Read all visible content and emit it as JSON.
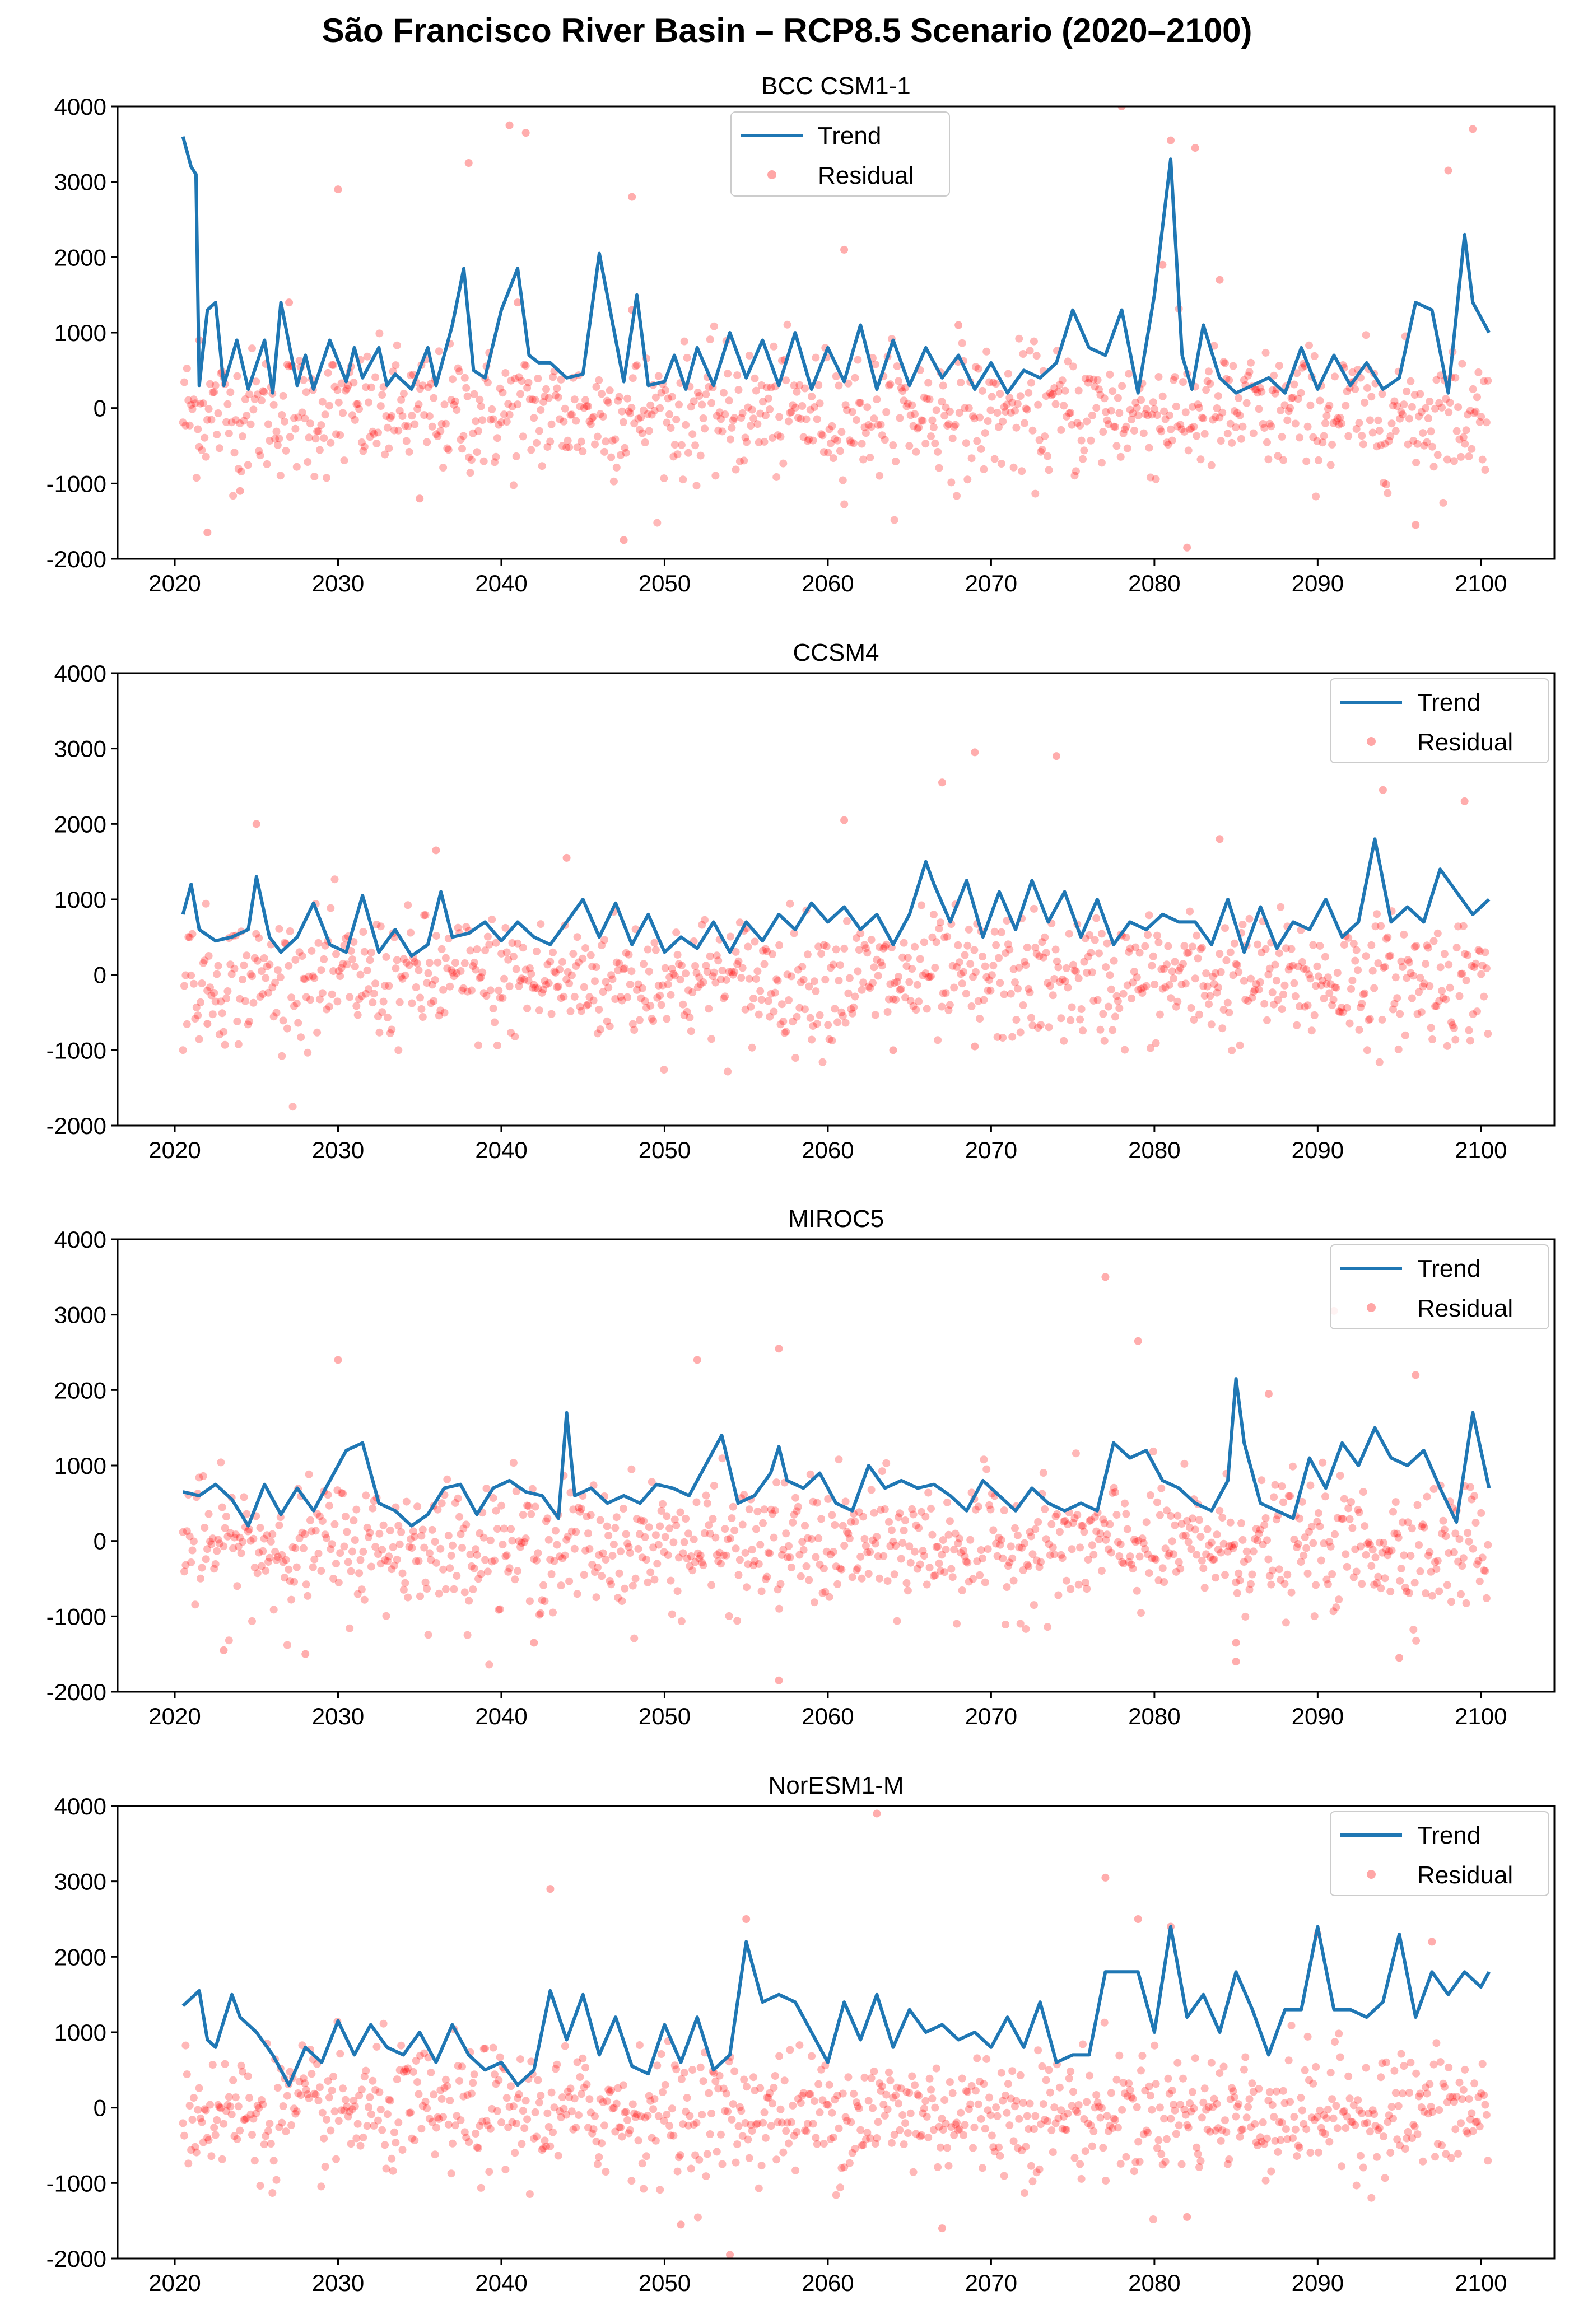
{
  "suptitle": "São Francisco River Basin – RCP8.5 Scenario (2020–2100)",
  "colors": {
    "trend": "#1f77b4",
    "residual": "#ff0000",
    "axis": "#000000",
    "background": "#ffffff"
  },
  "chart_data": [
    {
      "type": "line+scatter",
      "title": "BCC CSM1-1",
      "xlim": [
        2016.5,
        2104.5
      ],
      "ylim": [
        -2000,
        4000
      ],
      "xticks": [
        2020,
        2030,
        2040,
        2050,
        2060,
        2070,
        2080,
        2090,
        2100
      ],
      "yticks": [
        -2000,
        -1000,
        0,
        1000,
        2000,
        3000,
        4000
      ],
      "legend": {
        "position": "top-center",
        "entries": [
          "Trend",
          "Residual"
        ]
      },
      "trend": {
        "name": "Trend",
        "x": [
          2020.5,
          2021,
          2021.3,
          2021.5,
          2022,
          2022.5,
          2023,
          2023.8,
          2024.5,
          2025.5,
          2026,
          2026.5,
          2027.5,
          2028,
          2028.5,
          2029.5,
          2030.5,
          2031,
          2031.5,
          2032.5,
          2033,
          2033.5,
          2034.5,
          2035.5,
          2036,
          2037,
          2037.7,
          2038.3,
          2039,
          2040,
          2041,
          2041.7,
          2042.3,
          2043,
          2044,
          2045,
          2046,
          2047.5,
          2048.3,
          2049,
          2050,
          2050.6,
          2051.3,
          2052,
          2053,
          2054,
          2055,
          2056,
          2057,
          2058,
          2059,
          2060,
          2061,
          2062,
          2063,
          2064,
          2065,
          2066,
          2067,
          2068,
          2069,
          2070,
          2071,
          2072,
          2073,
          2074,
          2075,
          2076,
          2077,
          2078,
          2079,
          2080,
          2081,
          2081.7,
          2082.3,
          2083,
          2084,
          2085,
          2086,
          2087,
          2088,
          2089,
          2090,
          2091,
          2092,
          2093,
          2094,
          2095,
          2096,
          2097,
          2098,
          2099,
          2099.5,
          2100.5
        ],
        "values": [
          3600,
          3200,
          3100,
          300,
          1300,
          1400,
          300,
          900,
          250,
          900,
          200,
          1400,
          300,
          700,
          250,
          900,
          350,
          800,
          400,
          800,
          300,
          450,
          250,
          800,
          300,
          1100,
          1850,
          500,
          400,
          1300,
          1850,
          700,
          600,
          600,
          400,
          450,
          2050,
          350,
          1500,
          300,
          350,
          700,
          250,
          800,
          300,
          1000,
          400,
          900,
          300,
          1000,
          250,
          800,
          350,
          1100,
          250,
          900,
          300,
          800,
          400,
          700,
          250,
          600,
          200,
          500,
          400,
          600,
          1300,
          800,
          700,
          1300,
          200,
          1500,
          3300,
          700,
          250,
          1100,
          400,
          200,
          300,
          400,
          200,
          800,
          250,
          700,
          300,
          600,
          250,
          400,
          1400,
          1300,
          200,
          2300,
          1400,
          1000
        ]
      },
      "residual": {
        "name": "Residual",
        "x": [
          2027,
          2030,
          2038,
          2040.5,
          2041.5,
          2048,
          2061,
          2078,
          2081,
          2082.5,
          2098,
          2099.5,
          2022,
          2024,
          2035,
          2047.5,
          2082,
          2096,
          2021.5,
          2041,
          2048,
          2068,
          2080.5,
          2084
        ],
        "values": [
          1400,
          2900,
          3250,
          3750,
          3650,
          2800,
          2100,
          4000,
          3550,
          3450,
          3150,
          3700,
          -1650,
          -1100,
          -1200,
          -1750,
          -1850,
          -1550,
          900,
          1400,
          1300,
          1100,
          1900,
          1700
        ]
      }
    },
    {
      "type": "line+scatter",
      "title": "CCSM4",
      "xlim": [
        2016.5,
        2104.5
      ],
      "ylim": [
        -2000,
        4000
      ],
      "xticks": [
        2020,
        2030,
        2040,
        2050,
        2060,
        2070,
        2080,
        2090,
        2100
      ],
      "yticks": [
        -2000,
        -1000,
        0,
        1000,
        2000,
        3000,
        4000
      ],
      "legend": {
        "position": "top-right",
        "entries": [
          "Trend",
          "Residual"
        ]
      },
      "trend": {
        "name": "Trend",
        "x": [
          2020.5,
          2021,
          2021.5,
          2022.5,
          2023.5,
          2024.5,
          2025,
          2025.8,
          2026.5,
          2027.5,
          2028.5,
          2029.5,
          2030.5,
          2031.5,
          2032.5,
          2033.5,
          2034.5,
          2035.5,
          2036.3,
          2037,
          2038,
          2039,
          2040,
          2041,
          2042,
          2043,
          2044,
          2045,
          2046,
          2047,
          2048,
          2049,
          2050,
          2051,
          2052,
          2053,
          2054,
          2055,
          2056,
          2057,
          2058,
          2059,
          2060,
          2061,
          2062,
          2063,
          2064,
          2065,
          2066,
          2066.5,
          2067.5,
          2068.5,
          2069.5,
          2070.5,
          2071.5,
          2072.5,
          2073.5,
          2074.5,
          2075.5,
          2076.5,
          2077.5,
          2078.5,
          2079.5,
          2080.5,
          2081.5,
          2082.5,
          2083.5,
          2084.5,
          2085.5,
          2086.5,
          2087.5,
          2088.5,
          2089.5,
          2090.5,
          2091.5,
          2092.5,
          2093.5,
          2094.5,
          2095.5,
          2096.5,
          2097.5,
          2098.5,
          2099.5,
          2100.5
        ],
        "values": [
          800,
          1200,
          600,
          450,
          500,
          600,
          1300,
          500,
          300,
          500,
          950,
          400,
          300,
          1050,
          300,
          600,
          250,
          400,
          1100,
          500,
          550,
          700,
          450,
          700,
          500,
          400,
          700,
          1000,
          500,
          950,
          400,
          800,
          300,
          500,
          350,
          700,
          300,
          700,
          450,
          800,
          600,
          950,
          700,
          900,
          600,
          800,
          400,
          800,
          1500,
          1200,
          700,
          1250,
          500,
          1100,
          600,
          1250,
          700,
          1100,
          500,
          1000,
          400,
          700,
          600,
          800,
          700,
          700,
          400,
          1000,
          300,
          900,
          350,
          700,
          600,
          1000,
          500,
          700,
          1800,
          700,
          900,
          700,
          1400,
          1100,
          800,
          1000
        ]
      },
      "residual": {
        "name": "Residual",
        "x": [
          2025,
          2036,
          2044,
          2061,
          2067,
          2069,
          2074,
          2084,
          2094,
          2099,
          2022,
          2064,
          2069
        ],
        "values": [
          2000,
          1650,
          1550,
          2050,
          2550,
          2950,
          2900,
          1800,
          2450,
          2300,
          -650,
          -1000,
          -950
        ]
      }
    },
    {
      "type": "line+scatter",
      "title": "MIROC5",
      "xlim": [
        2016.5,
        2104.5
      ],
      "ylim": [
        -2000,
        4000
      ],
      "xticks": [
        2020,
        2030,
        2040,
        2050,
        2060,
        2070,
        2080,
        2090,
        2100
      ],
      "yticks": [
        -2000,
        -1000,
        0,
        1000,
        2000,
        3000,
        4000
      ],
      "legend": {
        "position": "top-right",
        "entries": [
          "Trend",
          "Residual"
        ]
      },
      "trend": {
        "name": "Trend",
        "x": [
          2020.5,
          2021.5,
          2022.5,
          2023.5,
          2024.5,
          2025.5,
          2026.5,
          2027.5,
          2028.5,
          2029.5,
          2030.5,
          2031.5,
          2032.5,
          2033.5,
          2034.5,
          2035.5,
          2036.5,
          2037.5,
          2038.5,
          2039.5,
          2040.5,
          2041.5,
          2042.5,
          2043.5,
          2044,
          2044.5,
          2045.5,
          2046.5,
          2047.5,
          2048.5,
          2049.5,
          2050.5,
          2051.5,
          2052.5,
          2053.5,
          2054.5,
          2055.5,
          2056.5,
          2057,
          2057.5,
          2058.5,
          2059.5,
          2060.5,
          2061.5,
          2062.5,
          2063.5,
          2064.5,
          2065.5,
          2066.5,
          2067.5,
          2068.5,
          2069.5,
          2070.5,
          2071.5,
          2072.5,
          2073.5,
          2074.5,
          2075.5,
          2076.5,
          2077.5,
          2078.5,
          2079.5,
          2080.5,
          2081.5,
          2082.5,
          2083.5,
          2084.5,
          2085,
          2085.5,
          2086.5,
          2087.5,
          2088.5,
          2089.5,
          2090.5,
          2091.5,
          2092.5,
          2093.5,
          2094.5,
          2095.5,
          2096.5,
          2097.5,
          2098.5,
          2099.5,
          2100.5
        ],
        "values": [
          650,
          600,
          750,
          550,
          200,
          750,
          350,
          700,
          400,
          800,
          1200,
          1300,
          500,
          400,
          200,
          350,
          700,
          750,
          350,
          700,
          800,
          650,
          600,
          300,
          1700,
          600,
          700,
          500,
          600,
          500,
          750,
          700,
          600,
          1000,
          1400,
          500,
          600,
          900,
          1250,
          800,
          700,
          900,
          500,
          400,
          1000,
          700,
          800,
          700,
          750,
          600,
          400,
          800,
          600,
          400,
          700,
          500,
          400,
          500,
          400,
          1300,
          1100,
          1200,
          800,
          700,
          500,
          400,
          800,
          2150,
          1300,
          500,
          400,
          300,
          1100,
          700,
          1300,
          1000,
          1500,
          1100,
          1000,
          1200,
          700,
          250,
          1700,
          700
        ]
      },
      "residual": {
        "name": "Residual",
        "x": [
          2030,
          2052,
          2057,
          2077,
          2079,
          2091,
          2096,
          2087,
          2023,
          2028,
          2042,
          2057,
          2085,
          2095,
          2085
        ],
        "values": [
          2400,
          2400,
          2550,
          3500,
          2650,
          3050,
          2200,
          1950,
          -1450,
          -1500,
          -1350,
          -1850,
          -1600,
          -1550,
          -1350
        ]
      }
    },
    {
      "type": "line+scatter",
      "title": "NorESM1-M",
      "xlim": [
        2016.5,
        2104.5
      ],
      "ylim": [
        -2000,
        4000
      ],
      "xticks": [
        2020,
        2030,
        2040,
        2050,
        2060,
        2070,
        2080,
        2090,
        2100
      ],
      "yticks": [
        -2000,
        -1000,
        0,
        1000,
        2000,
        3000,
        4000
      ],
      "legend": {
        "position": "top-right",
        "entries": [
          "Trend",
          "Residual"
        ]
      },
      "trend": {
        "name": "Trend",
        "x": [
          2020.5,
          2021.5,
          2022,
          2022.5,
          2023.5,
          2024,
          2025,
          2026,
          2027,
          2028,
          2029,
          2030,
          2031,
          2032,
          2033,
          2034,
          2035,
          2036,
          2037,
          2038,
          2039,
          2040,
          2041,
          2042,
          2043,
          2044,
          2045,
          2046,
          2047,
          2048,
          2049,
          2050,
          2051,
          2052,
          2053,
          2054,
          2055,
          2056,
          2057,
          2058,
          2059,
          2060,
          2061,
          2062,
          2063,
          2064,
          2065,
          2066,
          2067,
          2068,
          2069,
          2070,
          2071,
          2072,
          2073,
          2074,
          2075,
          2076,
          2077,
          2078,
          2079,
          2080,
          2081,
          2082,
          2083,
          2084,
          2085,
          2086,
          2087,
          2088,
          2089,
          2090,
          2091,
          2092,
          2093,
          2094,
          2095,
          2096,
          2097,
          2098,
          2099,
          2100,
          2100.5
        ],
        "values": [
          1350,
          1550,
          900,
          800,
          1500,
          1200,
          1000,
          700,
          300,
          800,
          600,
          1150,
          700,
          1100,
          800,
          700,
          1000,
          600,
          1100,
          700,
          500,
          600,
          300,
          500,
          1550,
          900,
          1500,
          700,
          1200,
          550,
          450,
          1100,
          600,
          1200,
          500,
          700,
          2200,
          1400,
          1500,
          1400,
          1000,
          600,
          1400,
          900,
          1500,
          800,
          1300,
          1000,
          1100,
          900,
          1000,
          800,
          1200,
          800,
          1400,
          600,
          700,
          700,
          1800,
          1800,
          1800,
          1000,
          2400,
          1200,
          1500,
          1000,
          1800,
          1300,
          700,
          1300,
          1300,
          2400,
          1300,
          1300,
          1200,
          1400,
          2300,
          1200,
          1800,
          1500,
          1800,
          1600,
          1800
        ]
      },
      "residual": {
        "name": "Residual",
        "x": [
          2043,
          2055,
          2063,
          2077,
          2079,
          2081,
          2090,
          2097,
          2051,
          2054,
          2067,
          2082
        ],
        "values": [
          2900,
          2500,
          3900,
          3050,
          2500,
          2400,
          2300,
          2200,
          -1550,
          -1950,
          -1600,
          -1450
        ]
      }
    }
  ]
}
